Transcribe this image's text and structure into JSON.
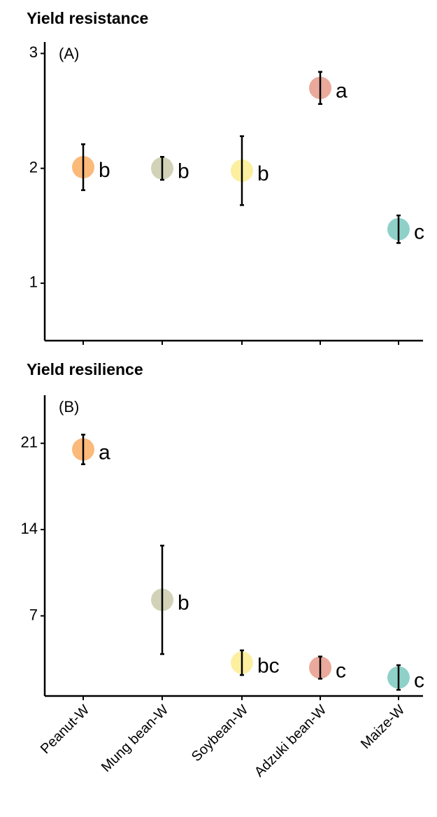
{
  "chart_data": {
    "type": "errorbar",
    "categories": [
      "Peanut-W",
      "Mung bean-W",
      "Soybean-W",
      "Adzuki bean-W",
      "Maize-W"
    ],
    "colors": [
      "#fbb97a",
      "#d2d2b8",
      "#fcef9f",
      "#eaa99b",
      "#8fd1c9"
    ],
    "panels": [
      {
        "title": "Yield resistance",
        "panel_label": "(A)",
        "ylim": [
          0.5,
          3.1
        ],
        "yticks": [
          1,
          2,
          3
        ],
        "values": [
          2.01,
          2.0,
          1.98,
          2.7,
          1.47
        ],
        "errors": [
          0.2,
          0.1,
          0.3,
          0.14,
          0.12
        ],
        "letters": [
          "b",
          "b",
          "b",
          "a",
          "c"
        ]
      },
      {
        "title": "Yield resilience",
        "panel_label": "(B)",
        "ylim": [
          0.5,
          24.9
        ],
        "yticks": [
          7,
          14,
          21
        ],
        "values": [
          20.5,
          8.3,
          3.2,
          2.8,
          2.0
        ],
        "errors": [
          1.2,
          4.4,
          1.0,
          0.9,
          1.0
        ],
        "letters": [
          "a",
          "b",
          "bc",
          "c",
          "c"
        ]
      }
    ]
  }
}
